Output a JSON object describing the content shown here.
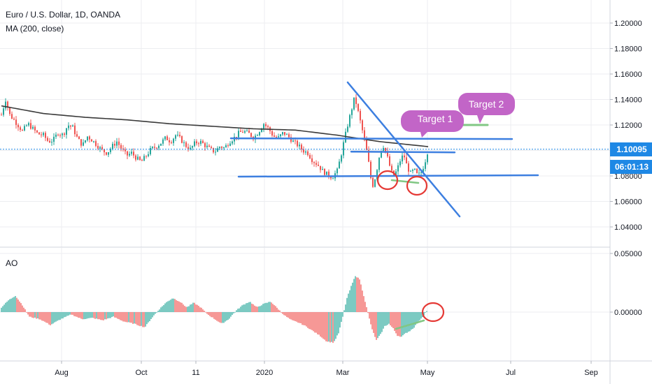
{
  "header": {
    "symbol_title": "Euro / U.S. Dollar, 1D, OANDA",
    "indicator_title": "MA (200, close)",
    "ao_title": "AO"
  },
  "price_badge": {
    "value": "1.10095",
    "color": "#1e88e5"
  },
  "countdown_badge": {
    "value": "06:01:13",
    "color": "#1e88e5"
  },
  "annotations": {
    "target1": "Target 1",
    "target2": "Target 2",
    "target_color": "#c265c7"
  },
  "colors": {
    "up": "#26a69a",
    "down": "#ef5350",
    "ma": "#3a3a3a",
    "trendline": "#3d7fe0",
    "green_mark": "#81c784",
    "red_mark": "#e53935",
    "grid": "#ecedf0",
    "ao_up": "#26a69a",
    "ao_down": "#ef5350"
  },
  "chart_data": [
    {
      "type": "candlestick",
      "title": "Euro / U.S. Dollar, 1D, OANDA",
      "overlay": "MA (200, close)",
      "y_ticks": [
        "1.20000",
        "1.18000",
        "1.16000",
        "1.14000",
        "1.12000",
        "1.10000",
        "1.08000",
        "1.06000",
        "1.04000"
      ],
      "ylim": [
        1.027,
        1.213
      ],
      "current_price": 1.10095,
      "x_ticks": [
        "Aug",
        "Oct",
        "11",
        "2020",
        "Mar",
        "May",
        "Jul",
        "Sep"
      ],
      "close_path": [
        [
          0,
          1.128
        ],
        [
          6,
          1.14
        ],
        [
          12,
          1.128
        ],
        [
          18,
          1.124
        ],
        [
          25,
          1.119
        ],
        [
          30,
          1.115
        ],
        [
          38,
          1.121
        ],
        [
          45,
          1.117
        ],
        [
          52,
          1.113
        ],
        [
          60,
          1.112
        ],
        [
          67,
          1.107
        ],
        [
          74,
          1.108
        ],
        [
          81,
          1.114
        ],
        [
          88,
          1.112
        ],
        [
          95,
          1.12
        ],
        [
          102,
          1.118
        ],
        [
          109,
          1.109
        ],
        [
          116,
          1.104
        ],
        [
          123,
          1.111
        ],
        [
          130,
          1.108
        ],
        [
          137,
          1.104
        ],
        [
          144,
          1.1
        ],
        [
          151,
          1.098
        ],
        [
          158,
          1.103
        ],
        [
          165,
          1.107
        ],
        [
          172,
          1.101
        ],
        [
          179,
          1.096
        ],
        [
          186,
          1.098
        ],
        [
          193,
          1.094
        ],
        [
          200,
          1.091
        ],
        [
          207,
          1.096
        ],
        [
          214,
          1.101
        ],
        [
          221,
          1.103
        ],
        [
          228,
          1.106
        ],
        [
          235,
          1.11
        ],
        [
          242,
          1.107
        ],
        [
          249,
          1.112
        ],
        [
          256,
          1.109
        ],
        [
          263,
          1.104
        ],
        [
          270,
          1.101
        ],
        [
          277,
          1.106
        ],
        [
          284,
          1.107
        ],
        [
          291,
          1.104
        ],
        [
          298,
          1.101
        ],
        [
          305,
          1.099
        ],
        [
          312,
          1.103
        ],
        [
          319,
          1.102
        ],
        [
          326,
          1.107
        ],
        [
          333,
          1.11
        ],
        [
          340,
          1.114
        ],
        [
          347,
          1.115
        ],
        [
          354,
          1.113
        ],
        [
          361,
          1.11
        ],
        [
          368,
          1.115
        ],
        [
          375,
          1.121
        ],
        [
          382,
          1.117
        ],
        [
          389,
          1.111
        ],
        [
          396,
          1.11
        ],
        [
          403,
          1.114
        ],
        [
          410,
          1.111
        ],
        [
          417,
          1.107
        ],
        [
          424,
          1.104
        ],
        [
          431,
          1.1
        ],
        [
          438,
          1.098
        ],
        [
          445,
          1.092
        ],
        [
          452,
          1.089
        ],
        [
          459,
          1.084
        ],
        [
          466,
          1.081
        ],
        [
          473,
          1.079
        ],
        [
          480,
          1.084
        ],
        [
          485,
          1.095
        ],
        [
          490,
          1.108
        ],
        [
          495,
          1.12
        ],
        [
          500,
          1.131
        ],
        [
          505,
          1.142
        ],
        [
          510,
          1.13
        ],
        [
          515,
          1.118
        ],
        [
          520,
          1.106
        ],
        [
          525,
          1.09
        ],
        [
          530,
          1.071
        ],
        [
          535,
          1.08
        ],
        [
          540,
          1.095
        ],
        [
          545,
          1.105
        ],
        [
          550,
          1.098
        ],
        [
          555,
          1.088
        ],
        [
          560,
          1.079
        ],
        [
          565,
          1.084
        ],
        [
          570,
          1.092
        ],
        [
          575,
          1.097
        ],
        [
          580,
          1.087
        ],
        [
          585,
          1.082
        ],
        [
          590,
          1.085
        ],
        [
          595,
          1.08
        ],
        [
          600,
          1.083
        ],
        [
          605,
          1.09
        ],
        [
          610,
          1.101
        ]
      ],
      "ma_path": [
        [
          0,
          1.135
        ],
        [
          60,
          1.129
        ],
        [
          120,
          1.126
        ],
        [
          180,
          1.124
        ],
        [
          240,
          1.121
        ],
        [
          300,
          1.119
        ],
        [
          360,
          1.117
        ],
        [
          420,
          1.116
        ],
        [
          480,
          1.112
        ],
        [
          540,
          1.107
        ],
        [
          610,
          1.103
        ]
      ],
      "target1_level": 1.12,
      "target2_level": 1.12,
      "resistance_level": 1.109,
      "mid_level": 1.0985,
      "support_level": 1.08
    },
    {
      "type": "bar",
      "title": "AO",
      "y_ticks": [
        "0.05000",
        "0.00000"
      ],
      "ylim": [
        -0.055,
        0.05
      ],
      "x_values_label": "AO histogram",
      "values_path": [
        [
          0,
          0.004
        ],
        [
          10,
          0.01
        ],
        [
          20,
          0.014
        ],
        [
          30,
          0.006
        ],
        [
          40,
          -0.004
        ],
        [
          55,
          -0.006
        ],
        [
          70,
          -0.011
        ],
        [
          85,
          -0.006
        ],
        [
          100,
          -0.002
        ],
        [
          115,
          -0.006
        ],
        [
          130,
          -0.005
        ],
        [
          145,
          -0.007
        ],
        [
          160,
          -0.004
        ],
        [
          175,
          -0.008
        ],
        [
          190,
          -0.01
        ],
        [
          205,
          -0.013
        ],
        [
          215,
          -0.005
        ],
        [
          225,
          0.002
        ],
        [
          235,
          0.008
        ],
        [
          245,
          0.012
        ],
        [
          255,
          0.009
        ],
        [
          265,
          0.004
        ],
        [
          275,
          0.008
        ],
        [
          285,
          0.004
        ],
        [
          295,
          -0.002
        ],
        [
          305,
          -0.006
        ],
        [
          315,
          -0.01
        ],
        [
          325,
          -0.006
        ],
        [
          335,
          0.001
        ],
        [
          345,
          0.006
        ],
        [
          355,
          0.009
        ],
        [
          365,
          0.004
        ],
        [
          375,
          0.007
        ],
        [
          385,
          0.009
        ],
        [
          395,
          0.003
        ],
        [
          405,
          -0.003
        ],
        [
          415,
          -0.007
        ],
        [
          425,
          -0.009
        ],
        [
          435,
          -0.012
        ],
        [
          445,
          -0.016
        ],
        [
          455,
          -0.02
        ],
        [
          465,
          -0.025
        ],
        [
          475,
          -0.026
        ],
        [
          482,
          -0.018
        ],
        [
          488,
          -0.004
        ],
        [
          494,
          0.012
        ],
        [
          500,
          0.022
        ],
        [
          506,
          0.031
        ],
        [
          512,
          0.028
        ],
        [
          518,
          0.014
        ],
        [
          524,
          -0.001
        ],
        [
          530,
          -0.015
        ],
        [
          536,
          -0.024
        ],
        [
          542,
          -0.019
        ],
        [
          548,
          -0.012
        ],
        [
          554,
          -0.01
        ],
        [
          560,
          -0.014
        ],
        [
          566,
          -0.02
        ],
        [
          572,
          -0.021
        ],
        [
          578,
          -0.018
        ],
        [
          584,
          -0.016
        ],
        [
          590,
          -0.013
        ],
        [
          596,
          -0.008
        ],
        [
          602,
          -0.004
        ],
        [
          608,
          0.001
        ]
      ]
    }
  ]
}
